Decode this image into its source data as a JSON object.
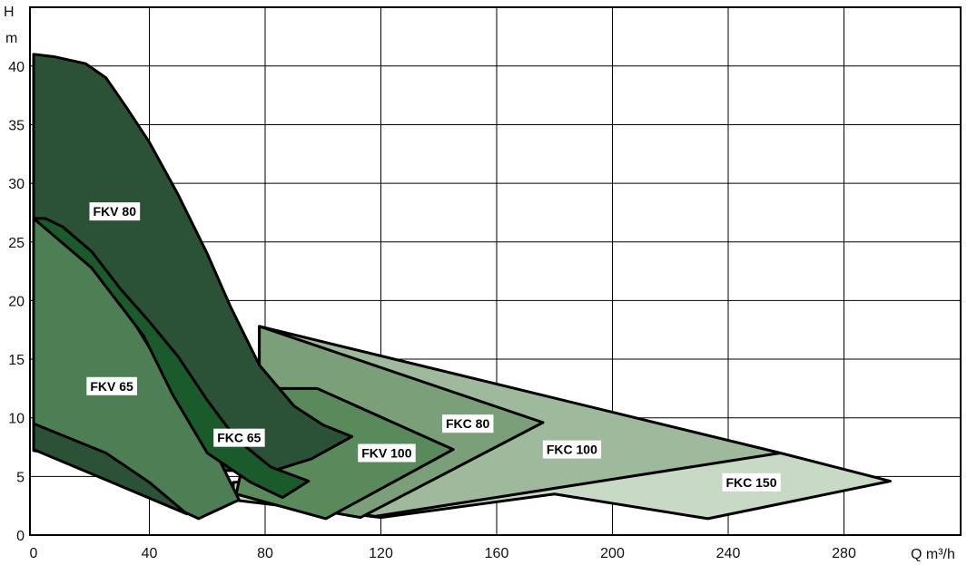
{
  "chart_data": {
    "type": "area",
    "title": "",
    "xlabel": "Q m³/h",
    "ylabel_top": "H",
    "ylabel_unit": "m",
    "xlim": [
      0,
      300
    ],
    "ylim": [
      0,
      42
    ],
    "x_ticks": [
      0,
      40,
      80,
      120,
      160,
      200,
      240,
      280
    ],
    "y_ticks": [
      0,
      5,
      10,
      15,
      20,
      25,
      30,
      35,
      40
    ],
    "grid": true,
    "regions": [
      {
        "name": "FKC 150",
        "color": "#c8d9c6",
        "label_at": [
          248,
          4.5
        ],
        "points": [
          [
            69,
            4.5
          ],
          [
            258,
            7
          ],
          [
            296,
            4.6
          ],
          [
            233,
            1.4
          ],
          [
            180,
            3.5
          ],
          [
            120,
            1.5
          ],
          [
            69,
            3
          ]
        ]
      },
      {
        "name": "FKC 100",
        "color": "#9eb99b",
        "label_at": [
          186,
          7.3
        ],
        "points": [
          [
            78,
            17.8
          ],
          [
            258,
            7
          ],
          [
            118,
            1.6
          ],
          [
            78,
            3
          ]
        ]
      },
      {
        "name": "FKC 80",
        "color": "#7b9f78",
        "label_at": [
          150,
          9.5
        ],
        "points": [
          [
            78,
            17.8
          ],
          [
            176,
            9.6
          ],
          [
            113,
            1.5
          ],
          [
            78,
            3
          ]
        ]
      },
      {
        "name": "FKV 100",
        "color": "#5a8a5c",
        "label_at": [
          122,
          7.0
        ],
        "points": [
          [
            98,
            12.5
          ],
          [
            145,
            7.3
          ],
          [
            101,
            1.4
          ],
          [
            70,
            3.5
          ],
          [
            78,
            12.5
          ]
        ]
      },
      {
        "name": "FKV 80",
        "color": "#2b5237",
        "label_at": [
          28,
          27.6
        ],
        "points": [
          [
            0,
            41
          ],
          [
            7,
            40.8
          ],
          [
            18,
            40.2
          ],
          [
            25,
            39
          ],
          [
            32,
            36.5
          ],
          [
            40,
            33.5
          ],
          [
            50,
            29
          ],
          [
            60,
            24
          ],
          [
            68,
            19.5
          ],
          [
            78,
            14.5
          ],
          [
            90,
            11
          ],
          [
            100,
            9.4
          ],
          [
            110,
            8.4
          ],
          [
            96,
            6.5
          ],
          [
            83,
            5.5
          ],
          [
            50,
            5.5
          ],
          [
            0,
            7.2
          ]
        ]
      },
      {
        "name": "FKV 65",
        "color": "#4e7f54",
        "label_at": [
          27,
          12.7
        ],
        "points": [
          [
            0,
            27
          ],
          [
            20,
            23.5
          ],
          [
            35,
            18
          ],
          [
            45,
            14
          ],
          [
            55,
            10.5
          ],
          [
            62,
            7.5
          ],
          [
            67,
            5
          ],
          [
            71,
            3
          ],
          [
            57,
            1.4
          ],
          [
            30,
            4.5
          ],
          [
            0,
            9.5
          ]
        ]
      },
      {
        "name": "FKC 65",
        "color": "#1b5a2b",
        "label_at": [
          71,
          8.3
        ],
        "points": [
          [
            0,
            27
          ],
          [
            4,
            27
          ],
          [
            10,
            26.3
          ],
          [
            20,
            24.2
          ],
          [
            30,
            21
          ],
          [
            40,
            18.2
          ],
          [
            50,
            15.2
          ],
          [
            60,
            11.5
          ],
          [
            70,
            8.2
          ],
          [
            82,
            5.8
          ],
          [
            95,
            4.6
          ],
          [
            86,
            3.2
          ],
          [
            75,
            4.5
          ],
          [
            60,
            7
          ],
          [
            48,
            12
          ],
          [
            38,
            17
          ],
          [
            20,
            22.8
          ],
          [
            0,
            27
          ]
        ]
      },
      {
        "name": "",
        "color": "#2b5237",
        "label_at": null,
        "points": [
          [
            0,
            9.5
          ],
          [
            25,
            7
          ],
          [
            40,
            4.5
          ],
          [
            53,
            1.8
          ],
          [
            0,
            7.3
          ]
        ]
      }
    ]
  }
}
